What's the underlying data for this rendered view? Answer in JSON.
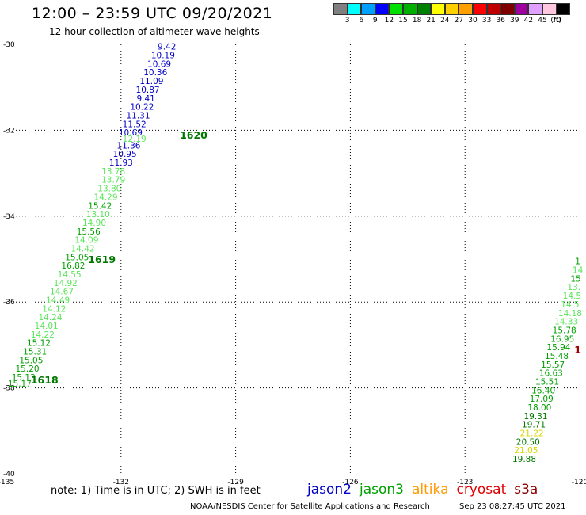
{
  "header": {
    "title": "12:00 – 23:59 UTC 09/20/2021",
    "subtitle": "12 hour collection of altimeter wave heights"
  },
  "legend": {
    "unit": "(ft)",
    "entries": [
      {
        "label": "3",
        "color": "#808080"
      },
      {
        "label": "6",
        "color": "#00ffff"
      },
      {
        "label": "9",
        "color": "#00a0ff"
      },
      {
        "label": "12",
        "color": "#0000ff"
      },
      {
        "label": "15",
        "color": "#00e000"
      },
      {
        "label": "18",
        "color": "#00b000"
      },
      {
        "label": "21",
        "color": "#008000"
      },
      {
        "label": "24",
        "color": "#ffff00"
      },
      {
        "label": "27",
        "color": "#ffd000"
      },
      {
        "label": "30",
        "color": "#ffa000"
      },
      {
        "label": "33",
        "color": "#ff0000"
      },
      {
        "label": "36",
        "color": "#c00000"
      },
      {
        "label": "39",
        "color": "#800000"
      },
      {
        "label": "42",
        "color": "#a000a0"
      },
      {
        "label": "45",
        "color": "#e0a0ff"
      },
      {
        "label": "70",
        "color": "#ffc8e0"
      },
      {
        "label": "",
        "color": "#000000"
      }
    ]
  },
  "map": {
    "lon_range": [
      -135,
      -120
    ],
    "lat_range": [
      -40,
      -30
    ],
    "lon_ticks": [
      "-135",
      "-132",
      "-129",
      "-126",
      "-123",
      "-120"
    ],
    "lat_ticks": [
      "-30",
      "-32",
      "-34",
      "-36",
      "-38",
      "-40"
    ],
    "colors": {
      "blue": "#0000c8",
      "lightgreen": "#5ae65a",
      "green": "#00a000",
      "darkgreen": "#007800",
      "yellow": "#d8d800",
      "darkred": "#a00000"
    },
    "track_labels": [
      {
        "text": "1620",
        "lon": -130.1,
        "lat": -32.1,
        "color": "darkgreen"
      },
      {
        "text": "1619",
        "lon": -132.5,
        "lat": -35.0,
        "color": "darkgreen"
      },
      {
        "text": "1618",
        "lon": -134.0,
        "lat": -37.8,
        "color": "darkgreen"
      },
      {
        "text": "1",
        "lon": -120.05,
        "lat": -37.1,
        "color": "darkred"
      }
    ],
    "observations": [
      {
        "v": "9.42",
        "lon": -130.8,
        "lat": -30.05,
        "c": "blue"
      },
      {
        "v": "10.19",
        "lon": -130.9,
        "lat": -30.25,
        "c": "blue"
      },
      {
        "v": "10.69",
        "lon": -131.0,
        "lat": -30.45,
        "c": "blue"
      },
      {
        "v": "10.36",
        "lon": -131.1,
        "lat": -30.65,
        "c": "blue"
      },
      {
        "v": "11.09",
        "lon": -131.2,
        "lat": -30.85,
        "c": "blue"
      },
      {
        "v": "10.87",
        "lon": -131.3,
        "lat": -31.05,
        "c": "blue"
      },
      {
        "v": "9.41",
        "lon": -131.35,
        "lat": -31.25,
        "c": "blue"
      },
      {
        "v": "10.22",
        "lon": -131.45,
        "lat": -31.45,
        "c": "blue"
      },
      {
        "v": "11.31",
        "lon": -131.55,
        "lat": -31.65,
        "c": "blue"
      },
      {
        "v": "11.52",
        "lon": -131.65,
        "lat": -31.85,
        "c": "blue"
      },
      {
        "v": "10.69",
        "lon": -131.75,
        "lat": -32.05,
        "c": "blue"
      },
      {
        "v": "12.19",
        "lon": -131.65,
        "lat": -32.2,
        "c": "lightgreen"
      },
      {
        "v": "11.36",
        "lon": -131.8,
        "lat": -32.35,
        "c": "blue"
      },
      {
        "v": "10.95",
        "lon": -131.9,
        "lat": -32.55,
        "c": "blue"
      },
      {
        "v": "11.93",
        "lon": -132.0,
        "lat": -32.75,
        "c": "blue"
      },
      {
        "v": "13.78",
        "lon": -132.2,
        "lat": -32.95,
        "c": "lightgreen"
      },
      {
        "v": "13.79",
        "lon": -132.2,
        "lat": -33.15,
        "c": "lightgreen"
      },
      {
        "v": "13.80",
        "lon": -132.3,
        "lat": -33.35,
        "c": "lightgreen"
      },
      {
        "v": "14.29",
        "lon": -132.4,
        "lat": -33.55,
        "c": "lightgreen"
      },
      {
        "v": "15.42",
        "lon": -132.55,
        "lat": -33.75,
        "c": "green"
      },
      {
        "v": "13.10",
        "lon": -132.6,
        "lat": -33.95,
        "c": "lightgreen"
      },
      {
        "v": "14.90",
        "lon": -132.7,
        "lat": -34.15,
        "c": "lightgreen"
      },
      {
        "v": "15.56",
        "lon": -132.85,
        "lat": -34.35,
        "c": "green"
      },
      {
        "v": "14.09",
        "lon": -132.9,
        "lat": -34.55,
        "c": "lightgreen"
      },
      {
        "v": "14.42",
        "lon": -133.0,
        "lat": -34.75,
        "c": "lightgreen"
      },
      {
        "v": "15.05",
        "lon": -133.15,
        "lat": -34.95,
        "c": "green"
      },
      {
        "v": "16.82",
        "lon": -133.25,
        "lat": -35.15,
        "c": "green"
      },
      {
        "v": "14.55",
        "lon": -133.35,
        "lat": -35.35,
        "c": "lightgreen"
      },
      {
        "v": "14.92",
        "lon": -133.45,
        "lat": -35.55,
        "c": "lightgreen"
      },
      {
        "v": "14.67",
        "lon": -133.55,
        "lat": -35.75,
        "c": "lightgreen"
      },
      {
        "v": "14.49",
        "lon": -133.65,
        "lat": -35.95,
        "c": "lightgreen"
      },
      {
        "v": "14.12",
        "lon": -133.75,
        "lat": -36.15,
        "c": "lightgreen"
      },
      {
        "v": "14.24",
        "lon": -133.85,
        "lat": -36.35,
        "c": "lightgreen"
      },
      {
        "v": "14.01",
        "lon": -133.95,
        "lat": -36.55,
        "c": "lightgreen"
      },
      {
        "v": "14.22",
        "lon": -134.05,
        "lat": -36.75,
        "c": "lightgreen"
      },
      {
        "v": "15.12",
        "lon": -134.15,
        "lat": -36.95,
        "c": "green"
      },
      {
        "v": "15.31",
        "lon": -134.25,
        "lat": -37.15,
        "c": "green"
      },
      {
        "v": "15.05",
        "lon": -134.35,
        "lat": -37.35,
        "c": "green"
      },
      {
        "v": "15.20",
        "lon": -134.45,
        "lat": -37.55,
        "c": "green"
      },
      {
        "v": "15.13",
        "lon": -134.55,
        "lat": -37.75,
        "c": "green"
      },
      {
        "v": "15.17",
        "lon": -134.65,
        "lat": -37.9,
        "c": "green"
      },
      {
        "v": "1",
        "lon": -120.05,
        "lat": -35.05,
        "c": "green"
      },
      {
        "v": "14",
        "lon": -120.05,
        "lat": -35.25,
        "c": "lightgreen"
      },
      {
        "v": "15",
        "lon": -120.1,
        "lat": -35.45,
        "c": "green"
      },
      {
        "v": "13.",
        "lon": -120.15,
        "lat": -35.65,
        "c": "lightgreen"
      },
      {
        "v": "14.5",
        "lon": -120.2,
        "lat": -35.85,
        "c": "lightgreen"
      },
      {
        "v": "14.5",
        "lon": -120.25,
        "lat": -36.05,
        "c": "lightgreen"
      },
      {
        "v": "14.18",
        "lon": -120.25,
        "lat": -36.25,
        "c": "lightgreen"
      },
      {
        "v": "14.33",
        "lon": -120.35,
        "lat": -36.45,
        "c": "lightgreen"
      },
      {
        "v": "15.78",
        "lon": -120.4,
        "lat": -36.65,
        "c": "green"
      },
      {
        "v": "16.95",
        "lon": -120.45,
        "lat": -36.85,
        "c": "green"
      },
      {
        "v": "15.94",
        "lon": -120.55,
        "lat": -37.05,
        "c": "green"
      },
      {
        "v": "15.48",
        "lon": -120.6,
        "lat": -37.25,
        "c": "green"
      },
      {
        "v": "15.57",
        "lon": -120.7,
        "lat": -37.45,
        "c": "green"
      },
      {
        "v": "16.63",
        "lon": -120.75,
        "lat": -37.65,
        "c": "green"
      },
      {
        "v": "15.51",
        "lon": -120.85,
        "lat": -37.85,
        "c": "green"
      },
      {
        "v": "16.40",
        "lon": -120.95,
        "lat": -38.05,
        "c": "green"
      },
      {
        "v": "17.09",
        "lon": -121.0,
        "lat": -38.25,
        "c": "green"
      },
      {
        "v": "18.00",
        "lon": -121.05,
        "lat": -38.45,
        "c": "green"
      },
      {
        "v": "19.31",
        "lon": -121.15,
        "lat": -38.65,
        "c": "darkgreen"
      },
      {
        "v": "19.71",
        "lon": -121.2,
        "lat": -38.85,
        "c": "darkgreen"
      },
      {
        "v": "21.22",
        "lon": -121.25,
        "lat": -39.05,
        "c": "yellow"
      },
      {
        "v": "20.50",
        "lon": -121.35,
        "lat": -39.25,
        "c": "darkgreen"
      },
      {
        "v": "21.05",
        "lon": -121.4,
        "lat": -39.45,
        "c": "yellow"
      },
      {
        "v": "19.88",
        "lon": -121.45,
        "lat": -39.65,
        "c": "darkgreen"
      }
    ]
  },
  "footer": {
    "note": "note:  1) Time is in UTC;  2) SWH is in feet",
    "credit": "NOAA/NESDIS Center for Satellite Applications and Research",
    "timestamp": "Sep 23 08:27:45 UTC 2021",
    "satellites": [
      {
        "name": "jason2",
        "color": "#0000c8"
      },
      {
        "name": "jason3",
        "color": "#00a000"
      },
      {
        "name": "altika",
        "color": "#ff9900"
      },
      {
        "name": "cryosat",
        "color": "#e00000"
      },
      {
        "name": "s3a",
        "color": "#8b0000"
      }
    ]
  }
}
